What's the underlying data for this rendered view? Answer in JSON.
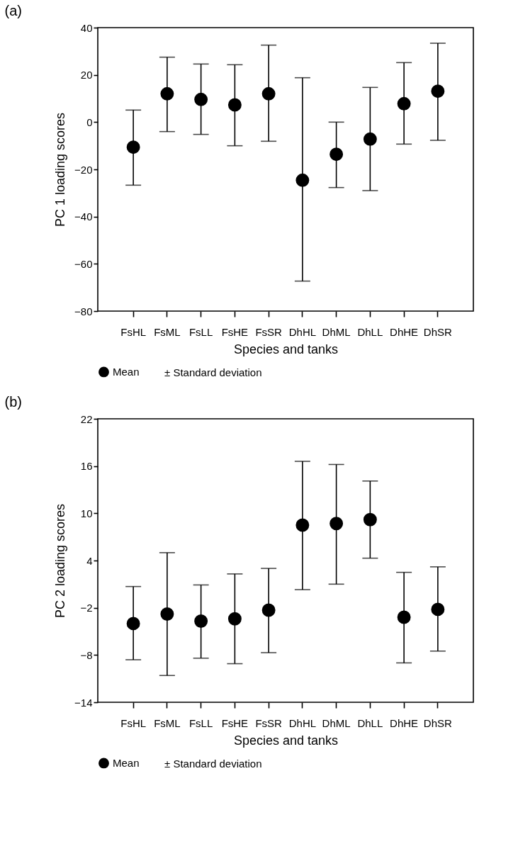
{
  "chart_data": [
    {
      "type": "scatter",
      "title": "(a)",
      "xlabel": "Species and tanks",
      "ylabel": "PC 1 loading scores",
      "categories": [
        "FsHL",
        "FsML",
        "FsLL",
        "FsHE",
        "FsSR",
        "DhHL",
        "DhML",
        "DhLL",
        "DhHE",
        "DhSR"
      ],
      "series": [
        {
          "name": "Mean",
          "color": "#000000",
          "values": [
            -10.6,
            12,
            9.6,
            7.3,
            12,
            -24.6,
            -13.6,
            -7.2,
            7.8,
            13.1
          ],
          "errors": [
            [
              -26.7,
              5.1
            ],
            [
              -4,
              27.5
            ],
            [
              -5.2,
              24.6
            ],
            [
              -10,
              24.3
            ],
            [
              -8.1,
              32.6
            ],
            [
              -67.3,
              18.8
            ],
            [
              -27.7,
              0
            ],
            [
              -29,
              14.7
            ],
            [
              -9.3,
              25.2
            ],
            [
              -7.7,
              33.4
            ]
          ]
        }
      ],
      "ylim": [
        -80,
        40
      ],
      "yticks": [
        -80,
        -60,
        -40,
        -20,
        0,
        20,
        40
      ],
      "marker": "circle",
      "grid": false,
      "legend": "bottom",
      "annotations": [
        "± Standard deviation"
      ]
    },
    {
      "type": "scatter",
      "title": "(b)",
      "xlabel": "Species and tanks",
      "ylabel": "PC 2 loading scores",
      "categories": [
        "FsHL",
        "FsML",
        "FsLL",
        "FsHE",
        "FsSR",
        "DhHL",
        "DhML",
        "DhLL",
        "DhHE",
        "DhSR"
      ],
      "series": [
        {
          "name": "Mean",
          "color": "#000000",
          "values": [
            -4.0,
            -2.8,
            -3.7,
            -3.4,
            -2.3,
            8.5,
            8.7,
            9.2,
            -3.2,
            -2.2
          ],
          "errors": [
            [
              -8.6,
              0.7
            ],
            [
              -10.6,
              5.0
            ],
            [
              -8.4,
              0.9
            ],
            [
              -9.1,
              2.3
            ],
            [
              -7.7,
              3.0
            ],
            [
              0.3,
              16.6
            ],
            [
              1.0,
              16.2
            ],
            [
              4.3,
              14.1
            ],
            [
              -9.0,
              2.5
            ],
            [
              -7.5,
              3.2
            ]
          ]
        }
      ],
      "ylim": [
        -14,
        22
      ],
      "yticks": [
        -14,
        -8,
        -2,
        4,
        10,
        16,
        22
      ],
      "marker": "circle",
      "grid": false,
      "legend": "bottom",
      "annotations": [
        "± Standard deviation"
      ]
    }
  ]
}
